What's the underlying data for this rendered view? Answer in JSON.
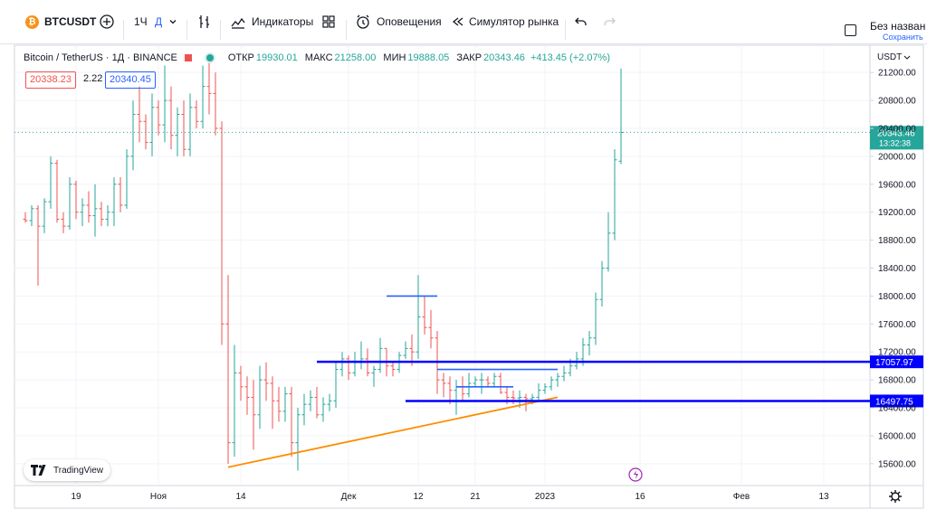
{
  "toolbar": {
    "symbol": "BTCUSDT",
    "symbol_icon": "₿",
    "interval": "1Ч",
    "interval_day": "Д",
    "indicators_label": "Индикаторы",
    "alerts_label": "Оповещения",
    "replay_label": "Симулятор рынка",
    "layout_title": "Без назван",
    "layout_status": "Сохранить"
  },
  "legend": {
    "title": "Bitcoin / TetherUS · 1Д · BINANCE",
    "open_label": "ОТКР",
    "open": "19930.01",
    "high_label": "МАКС",
    "high": "21258.00",
    "low_label": "МИН",
    "low": "19888.05",
    "close_label": "ЗАКР",
    "close": "20343.46",
    "change": "+413.45 (+2.07%)",
    "sell_price": "20338.23",
    "spread": "2.22",
    "buy_price": "20340.45"
  },
  "price_axis": {
    "currency": "USDT",
    "last_price": "20343.46",
    "countdown": "13:32:38",
    "level_upper": "17057.97",
    "level_lower": "16497.75"
  },
  "brand": {
    "name": "TradingView"
  },
  "colors": {
    "up": "#26a69a",
    "down": "#ef5350",
    "level": "#0000ff",
    "trendline": "#ff8c00",
    "short_line": "#2962ff"
  },
  "chart_data": {
    "type": "candlestick",
    "title": "Bitcoin / TetherUS · 1Д · BINANCE",
    "ylabel": "USDT",
    "ylim": [
      15300,
      21500
    ],
    "y_ticks": [
      15600,
      16000,
      16400,
      16800,
      17200,
      17600,
      18000,
      18400,
      18800,
      19200,
      19600,
      20000,
      20400,
      20800,
      21200
    ],
    "y_tick_labels": [
      "15600.00",
      "16000.00",
      "16400.00",
      "16800.00",
      "17200.00",
      "17600.00",
      "18000.00",
      "18400.00",
      "18800.00",
      "19200.00",
      "19600.00",
      "20000.00",
      "20400.00",
      "20800.00",
      "21200.00"
    ],
    "x_ticks": [
      {
        "label": "19",
        "index": 8
      },
      {
        "label": "Ноя",
        "index": 21
      },
      {
        "label": "14",
        "index": 34
      },
      {
        "label": "Дек",
        "index": 51
      },
      {
        "label": "12",
        "index": 62
      },
      {
        "label": "21",
        "index": 71
      },
      {
        "label": "2023",
        "index": 82
      },
      {
        "label": "16",
        "index": 97
      },
      {
        "label": "Фев",
        "index": 113
      },
      {
        "label": "13",
        "index": 126
      }
    ],
    "candles": [
      [
        19100,
        19200,
        19050,
        19080
      ],
      [
        19080,
        19300,
        19000,
        19250
      ],
      [
        19250,
        19300,
        18150,
        19000
      ],
      [
        19000,
        19400,
        18900,
        19350
      ],
      [
        19350,
        20000,
        19250,
        19900
      ],
      [
        19900,
        19950,
        19050,
        19100
      ],
      [
        19100,
        19200,
        18900,
        19000
      ],
      [
        19000,
        19700,
        18950,
        19600
      ],
      [
        19600,
        19650,
        19100,
        19200
      ],
      [
        19200,
        19400,
        19000,
        19300
      ],
      [
        19300,
        19500,
        19050,
        19150
      ],
      [
        19150,
        19600,
        18850,
        19250
      ],
      [
        19250,
        19350,
        19000,
        19100
      ],
      [
        19100,
        19300,
        19000,
        19200
      ],
      [
        19200,
        19700,
        19000,
        19600
      ],
      [
        19600,
        19700,
        19200,
        19300
      ],
      [
        19300,
        20100,
        19250,
        20000
      ],
      [
        20000,
        20800,
        19800,
        20600
      ],
      [
        20600,
        21000,
        20200,
        20500
      ],
      [
        20500,
        20600,
        20100,
        20200
      ],
      [
        20200,
        20900,
        20000,
        20700
      ],
      [
        20700,
        20800,
        20300,
        20450
      ],
      [
        20450,
        21300,
        20200,
        20800
      ],
      [
        20800,
        21000,
        20100,
        20300
      ],
      [
        20300,
        20700,
        20000,
        20600
      ],
      [
        20600,
        20800,
        20000,
        20100
      ],
      [
        20100,
        20900,
        20000,
        20700
      ],
      [
        20700,
        20800,
        20400,
        20500
      ],
      [
        20500,
        21300,
        20400,
        21000
      ],
      [
        21000,
        21400,
        20600,
        20900
      ],
      [
        20900,
        21200,
        20300,
        20400
      ],
      [
        20400,
        20500,
        17300,
        17600
      ],
      [
        17600,
        18300,
        15600,
        15900
      ],
      [
        15900,
        17300,
        15700,
        16900
      ],
      [
        16900,
        17000,
        16500,
        16700
      ],
      [
        16700,
        16850,
        16300,
        16550
      ],
      [
        16550,
        16800,
        15800,
        16300
      ],
      [
        16300,
        17000,
        16100,
        16800
      ],
      [
        16800,
        17050,
        16500,
        16750
      ],
      [
        16750,
        16850,
        16100,
        16500
      ],
      [
        16500,
        16700,
        16200,
        16350
      ],
      [
        16350,
        16700,
        16200,
        16600
      ],
      [
        16600,
        16700,
        15700,
        15900
      ],
      [
        15900,
        16400,
        15500,
        16300
      ],
      [
        16300,
        16600,
        16150,
        16450
      ],
      [
        16450,
        16650,
        16350,
        16550
      ],
      [
        16550,
        16700,
        16250,
        16300
      ],
      [
        16300,
        16550,
        16200,
        16450
      ],
      [
        16450,
        16600,
        16350,
        16500
      ],
      [
        16500,
        17050,
        16400,
        16950
      ],
      [
        16950,
        17200,
        16850,
        17100
      ],
      [
        17100,
        17150,
        16800,
        16900
      ],
      [
        16900,
        17200,
        16850,
        17050
      ],
      [
        17050,
        17350,
        16950,
        17100
      ],
      [
        17100,
        17250,
        16850,
        16900
      ],
      [
        16900,
        17000,
        16700,
        16950
      ],
      [
        16950,
        17400,
        16900,
        17250
      ],
      [
        17250,
        17250,
        16850,
        17000
      ],
      [
        17000,
        17050,
        16850,
        16950
      ],
      [
        16950,
        17200,
        16900,
        17150
      ],
      [
        17150,
        17350,
        17100,
        17250
      ],
      [
        17250,
        17450,
        17000,
        17200
      ],
      [
        17200,
        18300,
        17100,
        17700
      ],
      [
        17700,
        18000,
        17450,
        17550
      ],
      [
        17550,
        17800,
        17250,
        17400
      ],
      [
        17400,
        17500,
        16600,
        16800
      ],
      [
        16800,
        16900,
        16550,
        16750
      ],
      [
        16750,
        16850,
        16450,
        16650
      ],
      [
        16650,
        16800,
        16300,
        16700
      ],
      [
        16700,
        16850,
        16500,
        16600
      ],
      [
        16600,
        16900,
        16550,
        16750
      ],
      [
        16750,
        16850,
        16700,
        16800
      ],
      [
        16800,
        16900,
        16600,
        16800
      ],
      [
        16800,
        16850,
        16700,
        16750
      ],
      [
        16750,
        16900,
        16700,
        16850
      ],
      [
        16850,
        16900,
        16600,
        16620
      ],
      [
        16620,
        16700,
        16450,
        16550
      ],
      [
        16550,
        16650,
        16450,
        16540
      ],
      [
        16540,
        16650,
        16400,
        16550
      ],
      [
        16550,
        16600,
        16350,
        16530
      ],
      [
        16530,
        16600,
        16450,
        16550
      ],
      [
        16550,
        16750,
        16500,
        16650
      ],
      [
        16650,
        16750,
        16600,
        16700
      ],
      [
        16700,
        16850,
        16650,
        16800
      ],
      [
        16800,
        16900,
        16700,
        16850
      ],
      [
        16850,
        17000,
        16780,
        16900
      ],
      [
        16900,
        17100,
        16850,
        17000
      ],
      [
        17000,
        17200,
        16950,
        17100
      ],
      [
        17100,
        17400,
        17000,
        17300
      ],
      [
        17300,
        17500,
        17150,
        17400
      ],
      [
        17400,
        18050,
        17300,
        17950
      ],
      [
        17950,
        18500,
        17850,
        18400
      ],
      [
        18400,
        19200,
        18350,
        18900
      ],
      [
        18900,
        20100,
        18800,
        19950
      ],
      [
        19930,
        21258,
        19888,
        20343
      ]
    ],
    "annotations": [
      {
        "type": "trendline",
        "from": [
          32,
          15550
        ],
        "to": [
          84,
          16550
        ],
        "color": "#ff8c00"
      },
      {
        "type": "horizontal",
        "from_index": 46,
        "value": 17057.97,
        "color": "#0000ff",
        "label": "17057.97"
      },
      {
        "type": "horizontal",
        "from_index": 60,
        "value": 16497.75,
        "color": "#0000ff",
        "label": "16497.75"
      },
      {
        "type": "segment",
        "from": [
          57,
          18000
        ],
        "to": [
          65,
          18000
        ],
        "color": "#2962ff"
      },
      {
        "type": "segment",
        "from": [
          65,
          16950
        ],
        "to": [
          84,
          16950
        ],
        "color": "#2962ff"
      },
      {
        "type": "segment",
        "from": [
          68,
          16700
        ],
        "to": [
          77,
          16700
        ],
        "color": "#2962ff"
      }
    ]
  }
}
